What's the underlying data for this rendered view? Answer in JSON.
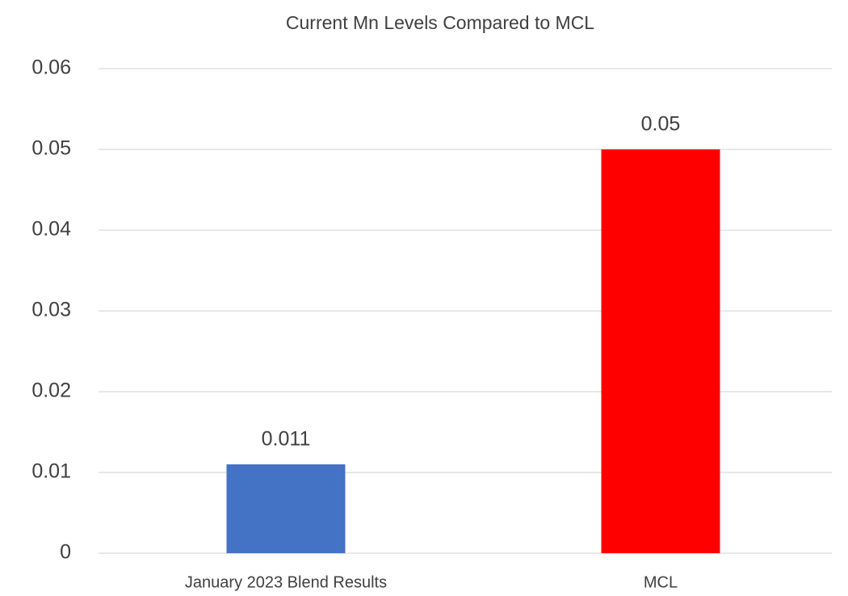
{
  "chart_data": {
    "type": "bar",
    "title": "Current Mn Levels Compared to MCL",
    "categories": [
      "January 2023 Blend Results",
      "MCL"
    ],
    "values": [
      0.011,
      0.05
    ],
    "colors": [
      "#4472c4",
      "#ff0000"
    ],
    "ylim": [
      0,
      0.06
    ],
    "yticks": [
      0,
      0.01,
      0.02,
      0.03,
      0.04,
      0.05,
      0.06
    ],
    "grid": true
  }
}
